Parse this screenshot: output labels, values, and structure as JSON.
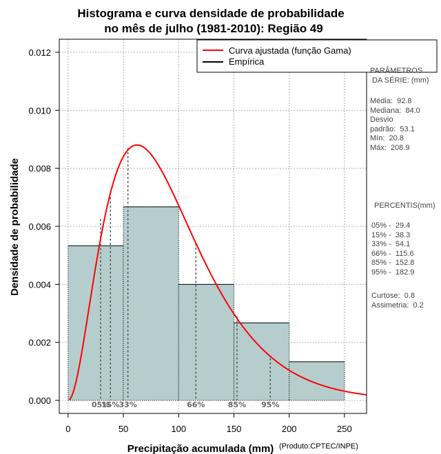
{
  "chart_data": {
    "type": "bar",
    "title_line1": "Histograma e curva densidade de probabilidade",
    "title_line2": "no mês de julho (1981-2010): Região 49",
    "xlabel": "Precipitação acumulada (mm)",
    "ylabel": "Densidade de probabilidade",
    "credit": "(Produto:CPTEC/INPE)",
    "xlim": [
      -8,
      270
    ],
    "ylim": [
      -0.00045,
      0.01245
    ],
    "xticks": [
      0,
      50,
      100,
      150,
      200,
      250
    ],
    "xtick_labels": [
      "0",
      "50",
      "100",
      "150",
      "200",
      "250"
    ],
    "yticks": [
      0.0,
      0.002,
      0.004,
      0.006,
      0.008,
      0.01,
      0.012
    ],
    "ytick_labels": [
      "0.000",
      "0.002",
      "0.004",
      "0.006",
      "0.008",
      "0.010",
      "0.012"
    ],
    "grid": true,
    "bins": [
      {
        "start": 0,
        "end": 50,
        "density": 0.00533
      },
      {
        "start": 50,
        "end": 100,
        "density": 0.00667
      },
      {
        "start": 100,
        "end": 150,
        "density": 0.004
      },
      {
        "start": 150,
        "end": 200,
        "density": 0.00267
      },
      {
        "start": 200,
        "end": 250,
        "density": 0.00133
      }
    ],
    "gamma_fit": {
      "shape": 3.05,
      "scale": 30.4,
      "x_start": 1,
      "x_end": 270
    },
    "percentile_lines": [
      {
        "label": "05%",
        "x": 29.4,
        "y_top": 0.00625
      },
      {
        "label": "15%",
        "x": 38.3,
        "y_top": 0.007
      },
      {
        "label": "33%",
        "x": 54.1,
        "y_top": 0.0087
      },
      {
        "label": "66%",
        "x": 115.6,
        "y_top": 0.0054
      },
      {
        "label": "85%",
        "x": 152.8,
        "y_top": 0.0029
      },
      {
        "label": "95%",
        "x": 182.9,
        "y_top": 0.00145
      }
    ],
    "legend": [
      {
        "label": "Curva ajustada (função Gama)",
        "color": "#ff0000"
      },
      {
        "label": "Empírica",
        "color": "#000000"
      }
    ],
    "legend_position": "top-right",
    "colors": {
      "bar_fill": "#b5cdcd",
      "curve": "#ff0000",
      "grid": "#b0b0b0"
    }
  },
  "side_panel": {
    "params_heading": "PARÂMETROS\n DA SÉRIE: (mm)",
    "params_body": "Média:  92.8\nMediana:  84.0\nDesvio\npadrão:  53.1\nMín:  20.8\nMáx:  208.9",
    "percentis_heading": "PERCENTIS(mm)",
    "percentis_body": "05% -  29.4\n15% -  38.3\n33% -  54.1\n66% -  115.6\n85% -  152.8\n95% -  182.9",
    "extra_body": "Curtose:  0.8\nAssimetria:  0.2"
  }
}
